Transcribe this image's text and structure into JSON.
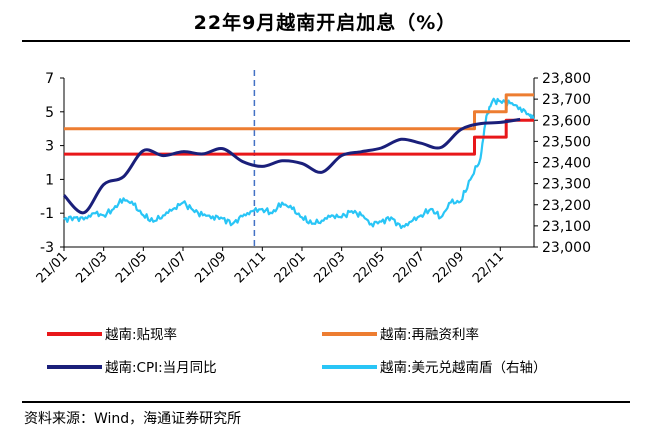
{
  "title": "22年9月越南开启加息（%）",
  "source": "资料来源：Wind，海通证券研究所",
  "chart_data": {
    "type": "line",
    "title": "22年9月越南开启加息（%）",
    "x_ticks": [
      "21/01",
      "21/03",
      "21/05",
      "21/07",
      "21/09",
      "21/11",
      "22/01",
      "22/03",
      "22/05",
      "22/07",
      "22/09",
      "22/11"
    ],
    "x_range": [
      "2021-01",
      "2022-12"
    ],
    "y_left": {
      "ticks": [
        7,
        5,
        3,
        1,
        -1,
        -3
      ],
      "range": [
        -3,
        7
      ]
    },
    "y_right": {
      "ticks": [
        "23,800",
        "23,700",
        "23,600",
        "23,500",
        "23,400",
        "23,300",
        "23,200",
        "23,100",
        "23,000"
      ],
      "range": [
        23000,
        23800
      ]
    },
    "reference_line": {
      "x": 9.6,
      "style": "dashed",
      "color": "#4472c4"
    },
    "series": [
      {
        "name": "越南:贴现率",
        "axis": "left",
        "color": "#e8171a",
        "step": true,
        "points": [
          [
            0,
            2.5
          ],
          [
            20.7,
            2.5
          ],
          [
            20.7,
            3.5
          ],
          [
            22.3,
            3.5
          ],
          [
            22.3,
            4.5
          ],
          [
            23.7,
            4.5
          ]
        ]
      },
      {
        "name": "越南:再融资利率",
        "axis": "left",
        "color": "#ed7d31",
        "step": true,
        "points": [
          [
            0,
            4.0
          ],
          [
            20.7,
            4.0
          ],
          [
            20.7,
            5.0
          ],
          [
            22.3,
            5.0
          ],
          [
            22.3,
            6.0
          ],
          [
            23.7,
            6.0
          ]
        ]
      },
      {
        "name": "越南:CPI:当月同比",
        "axis": "left",
        "color": "#1a1f7a",
        "step": false,
        "points": [
          [
            0,
            0.06
          ],
          [
            1,
            -0.97
          ],
          [
            2,
            0.7
          ],
          [
            3,
            1.16
          ],
          [
            4,
            2.7
          ],
          [
            5,
            2.41
          ],
          [
            6,
            2.64
          ],
          [
            7,
            2.51
          ],
          [
            8,
            2.82
          ],
          [
            9,
            2.06
          ],
          [
            10,
            1.77
          ],
          [
            11,
            2.1
          ],
          [
            12,
            1.94
          ],
          [
            13,
            1.42
          ],
          [
            14,
            2.41
          ],
          [
            15,
            2.64
          ],
          [
            16,
            2.86
          ],
          [
            17,
            3.37
          ],
          [
            18,
            3.14
          ],
          [
            19,
            2.89
          ],
          [
            20,
            3.94
          ],
          [
            21,
            4.3
          ],
          [
            22,
            4.37
          ],
          [
            23,
            4.55
          ]
        ]
      },
      {
        "name": "越南:美元兑越南盾（右轴）",
        "axis": "right",
        "color": "#29c5f6",
        "step": false,
        "points": [
          [
            0,
            23130
          ],
          [
            0.5,
            23140
          ],
          [
            1,
            23130
          ],
          [
            1.5,
            23160
          ],
          [
            2,
            23150
          ],
          [
            2.5,
            23180
          ],
          [
            3,
            23230
          ],
          [
            3.5,
            23200
          ],
          [
            4,
            23150
          ],
          [
            4.5,
            23120
          ],
          [
            5,
            23150
          ],
          [
            5.5,
            23180
          ],
          [
            6,
            23210
          ],
          [
            6.5,
            23175
          ],
          [
            7,
            23150
          ],
          [
            7.5,
            23145
          ],
          [
            8,
            23135
          ],
          [
            8.5,
            23110
          ],
          [
            9,
            23145
          ],
          [
            9.5,
            23170
          ],
          [
            10,
            23180
          ],
          [
            10.5,
            23160
          ],
          [
            11,
            23210
          ],
          [
            11.5,
            23180
          ],
          [
            12,
            23140
          ],
          [
            12.5,
            23110
          ],
          [
            13,
            23125
          ],
          [
            13.5,
            23150
          ],
          [
            14,
            23140
          ],
          [
            14.5,
            23170
          ],
          [
            15,
            23150
          ],
          [
            15.5,
            23110
          ],
          [
            16,
            23120
          ],
          [
            16.5,
            23140
          ],
          [
            17,
            23090
          ],
          [
            17.5,
            23120
          ],
          [
            18,
            23150
          ],
          [
            18.5,
            23180
          ],
          [
            19,
            23140
          ],
          [
            19.5,
            23210
          ],
          [
            20,
            23215
          ],
          [
            20.5,
            23320
          ],
          [
            21,
            23420
          ],
          [
            21.3,
            23620
          ],
          [
            21.6,
            23690
          ],
          [
            22,
            23690
          ],
          [
            22.5,
            23680
          ],
          [
            23,
            23660
          ],
          [
            23.5,
            23620
          ],
          [
            23.7,
            23610
          ]
        ]
      }
    ]
  }
}
